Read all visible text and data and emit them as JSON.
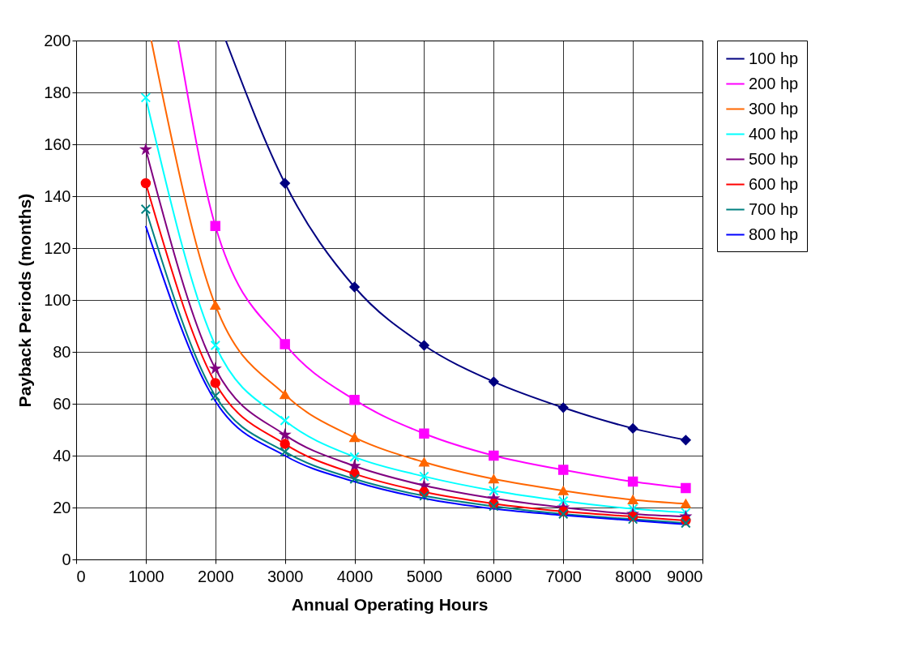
{
  "chart_data": {
    "type": "line",
    "xlabel": "Annual Operating Hours",
    "ylabel": "Payback Periods (months)",
    "xlim": [
      0,
      9000
    ],
    "xticks": [
      0,
      1000,
      2000,
      3000,
      4000,
      5000,
      6000,
      7000,
      8000,
      9000
    ],
    "ylim": [
      0,
      200
    ],
    "yticks": [
      0,
      20,
      40,
      60,
      80,
      100,
      120,
      140,
      160,
      180,
      200
    ],
    "grid": true,
    "legend": "right",
    "series": [
      {
        "name": "100 hp",
        "color": "#000080",
        "marker": "diamond",
        "x": [
          2150,
          3000,
          4000,
          5000,
          6000,
          7000,
          8000,
          8760
        ],
        "values": [
          200,
          145,
          105,
          82.5,
          68.5,
          58.5,
          50.5,
          46
        ]
      },
      {
        "name": "200 hp",
        "color": "#ff00ff",
        "marker": "square",
        "x": [
          1465,
          2000,
          3000,
          4000,
          5000,
          6000,
          7000,
          8000,
          8760
        ],
        "values": [
          200,
          128.5,
          83,
          61.5,
          48.5,
          40,
          34.5,
          30,
          27.5
        ]
      },
      {
        "name": "300 hp",
        "color": "#ff6600",
        "marker": "triangle",
        "x": [
          1080,
          2000,
          3000,
          4000,
          5000,
          6000,
          7000,
          8000,
          8760
        ],
        "values": [
          200,
          98,
          63.5,
          47,
          37.5,
          31,
          26.5,
          23,
          21.5
        ]
      },
      {
        "name": "400 hp",
        "color": "#00ffff",
        "marker": "cross",
        "x": [
          1000,
          2000,
          3000,
          4000,
          5000,
          6000,
          7000,
          8000,
          8760
        ],
        "values": [
          178,
          82.5,
          53.5,
          39.5,
          32,
          26.5,
          22.5,
          19.5,
          18
        ]
      },
      {
        "name": "500 hp",
        "color": "#800080",
        "marker": "star",
        "x": [
          1000,
          2000,
          3000,
          4000,
          5000,
          6000,
          7000,
          8000,
          8760
        ],
        "values": [
          158,
          73.5,
          48,
          36,
          28.5,
          23.5,
          20,
          17.5,
          16.5
        ]
      },
      {
        "name": "600 hp",
        "color": "#ff0000",
        "marker": "circle",
        "x": [
          1000,
          2000,
          3000,
          4000,
          5000,
          6000,
          7000,
          8000,
          8760
        ],
        "values": [
          145,
          68,
          44.5,
          33,
          26,
          21.5,
          18.5,
          16.5,
          15
        ]
      },
      {
        "name": "700 hp",
        "color": "#008080",
        "marker": "cross",
        "x": [
          1000,
          2000,
          3000,
          4000,
          5000,
          6000,
          7000,
          8000,
          8760
        ],
        "values": [
          135,
          63,
          41.5,
          31,
          24.5,
          20.5,
          17.5,
          15.5,
          14
        ]
      },
      {
        "name": "800 hp",
        "color": "#0000ff",
        "marker": "none",
        "x": [
          1000,
          2000,
          3000,
          4000,
          5000,
          6000,
          7000,
          8000,
          8760
        ],
        "values": [
          128.5,
          61,
          40,
          30,
          23.5,
          19.5,
          17,
          15,
          13.5
        ]
      }
    ]
  }
}
